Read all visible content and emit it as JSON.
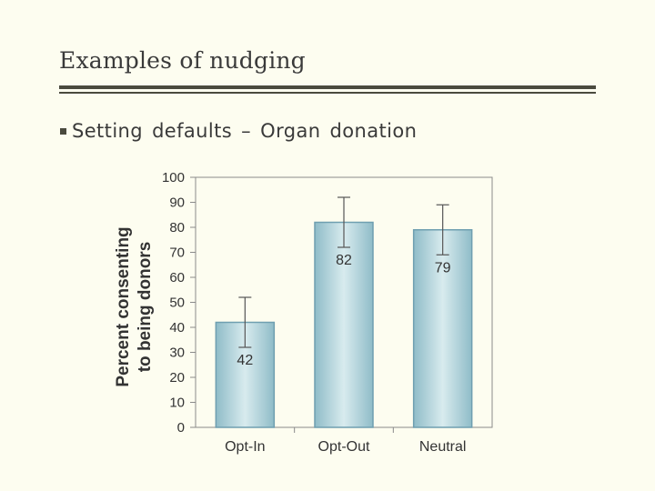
{
  "slide": {
    "title": "Examples of nudging",
    "bullet": "Setting  defaults – Organ  donation"
  },
  "chart_data": {
    "type": "bar",
    "categories": [
      "Opt-In",
      "Opt-Out",
      "Neutral"
    ],
    "values": [
      42,
      82,
      79
    ],
    "error_upper": [
      52,
      92,
      89
    ],
    "error_lower": [
      32,
      72,
      69
    ],
    "data_labels": [
      "42",
      "82",
      "79"
    ],
    "ylabel_lines": [
      "Percent consenting",
      "to being donors"
    ],
    "yticks": [
      "0",
      "10",
      "20",
      "30",
      "40",
      "50",
      "60",
      "70",
      "80",
      "90",
      "100"
    ],
    "ylim": [
      0,
      100
    ],
    "grid": false,
    "colors": {
      "bar_edge": "#6f9fb0",
      "bar_center": "#d8ebee",
      "bar_side": "#8fbcc8",
      "axis": "#8a8a8a"
    }
  }
}
